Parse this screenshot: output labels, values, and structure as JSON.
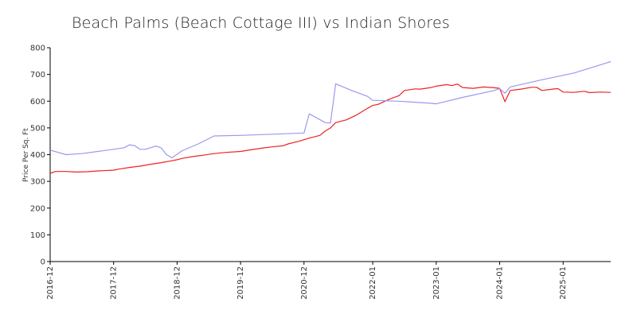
{
  "chart_data": {
    "type": "line",
    "title": "Beach Palms (Beach Cottage III) vs Indian Shores",
    "xlabel": "",
    "ylabel": "Price Per Sq. Ft",
    "ylim": [
      0,
      800
    ],
    "yticks": [
      0,
      100,
      200,
      300,
      400,
      500,
      600,
      700,
      800
    ],
    "x_range": [
      "2016-12",
      "2025-10"
    ],
    "xticks": [
      "2016-12",
      "2017-12",
      "2018-12",
      "2019-12",
      "2020-12",
      "2022-01",
      "2023-01",
      "2024-01",
      "2025-01"
    ],
    "legend": "none",
    "grid": false,
    "colors": {
      "red_series": "#ee2222",
      "blue_series": "#9999ee"
    },
    "series": [
      {
        "color": "#ee2222",
        "points": [
          [
            "2016-12",
            330
          ],
          [
            "2017-01",
            337
          ],
          [
            "2017-03",
            337
          ],
          [
            "2017-05",
            335
          ],
          [
            "2017-07",
            336
          ],
          [
            "2017-09",
            339
          ],
          [
            "2017-12",
            342
          ],
          [
            "2018-01",
            346
          ],
          [
            "2018-03",
            352
          ],
          [
            "2018-05",
            357
          ],
          [
            "2018-07",
            364
          ],
          [
            "2018-09",
            370
          ],
          [
            "2018-11",
            377
          ],
          [
            "2018-12",
            381
          ],
          [
            "2019-01",
            386
          ],
          [
            "2019-03",
            393
          ],
          [
            "2019-05",
            398
          ],
          [
            "2019-07",
            404
          ],
          [
            "2019-09",
            408
          ],
          [
            "2019-12",
            412
          ],
          [
            "2020-02",
            418
          ],
          [
            "2020-04",
            424
          ],
          [
            "2020-06",
            429
          ],
          [
            "2020-08",
            433
          ],
          [
            "2020-09",
            440
          ],
          [
            "2020-11",
            450
          ],
          [
            "2021-01",
            462
          ],
          [
            "2021-03",
            472
          ],
          [
            "2021-04",
            488
          ],
          [
            "2021-05",
            500
          ],
          [
            "2021-06",
            520
          ],
          [
            "2021-08",
            530
          ],
          [
            "2021-10",
            549
          ],
          [
            "2021-12",
            573
          ],
          [
            "2022-01",
            584
          ],
          [
            "2022-02",
            588
          ],
          [
            "2022-04",
            606
          ],
          [
            "2022-06",
            621
          ],
          [
            "2022-07",
            640
          ],
          [
            "2022-09",
            646
          ],
          [
            "2022-10",
            645
          ],
          [
            "2022-12",
            651
          ],
          [
            "2023-01",
            656
          ],
          [
            "2023-03",
            662
          ],
          [
            "2023-04",
            658
          ],
          [
            "2023-05",
            664
          ],
          [
            "2023-06",
            651
          ],
          [
            "2023-08",
            648
          ],
          [
            "2023-10",
            653
          ],
          [
            "2023-12",
            650
          ],
          [
            "2024-01",
            648
          ],
          [
            "2024-02",
            598
          ],
          [
            "2024-03",
            640
          ],
          [
            "2024-05",
            645
          ],
          [
            "2024-07",
            652
          ],
          [
            "2024-08",
            652
          ],
          [
            "2024-09",
            640
          ],
          [
            "2024-11",
            645
          ],
          [
            "2024-12",
            647
          ],
          [
            "2025-01",
            634
          ],
          [
            "2025-03",
            633
          ],
          [
            "2025-05",
            637
          ],
          [
            "2025-06",
            632
          ],
          [
            "2025-08",
            634
          ],
          [
            "2025-10",
            633
          ]
        ]
      },
      {
        "color": "#9999ee",
        "points": [
          [
            "2016-12",
            417
          ],
          [
            "2017-03",
            400
          ],
          [
            "2017-06",
            404
          ],
          [
            "2017-09",
            412
          ],
          [
            "2017-12",
            420
          ],
          [
            "2018-02",
            426
          ],
          [
            "2018-03",
            437
          ],
          [
            "2018-04",
            433
          ],
          [
            "2018-05",
            420
          ],
          [
            "2018-06",
            420
          ],
          [
            "2018-08",
            432
          ],
          [
            "2018-09",
            425
          ],
          [
            "2018-10",
            400
          ],
          [
            "2018-11",
            388
          ],
          [
            "2019-01",
            415
          ],
          [
            "2019-04",
            440
          ],
          [
            "2019-07",
            470
          ],
          [
            "2019-12",
            472
          ],
          [
            "2020-12",
            481
          ],
          [
            "2021-01",
            553
          ],
          [
            "2021-04",
            520
          ],
          [
            "2021-05",
            518
          ],
          [
            "2021-06",
            665
          ],
          [
            "2021-09",
            640
          ],
          [
            "2021-12",
            618
          ],
          [
            "2022-01",
            603
          ],
          [
            "2022-06",
            600
          ],
          [
            "2022-12",
            592
          ],
          [
            "2023-01",
            590
          ],
          [
            "2023-06",
            614
          ],
          [
            "2023-12",
            640
          ],
          [
            "2024-01",
            647
          ],
          [
            "2024-02",
            630
          ],
          [
            "2024-03",
            653
          ],
          [
            "2024-09",
            680
          ],
          [
            "2025-03",
            705
          ],
          [
            "2025-10",
            748
          ]
        ]
      }
    ]
  }
}
